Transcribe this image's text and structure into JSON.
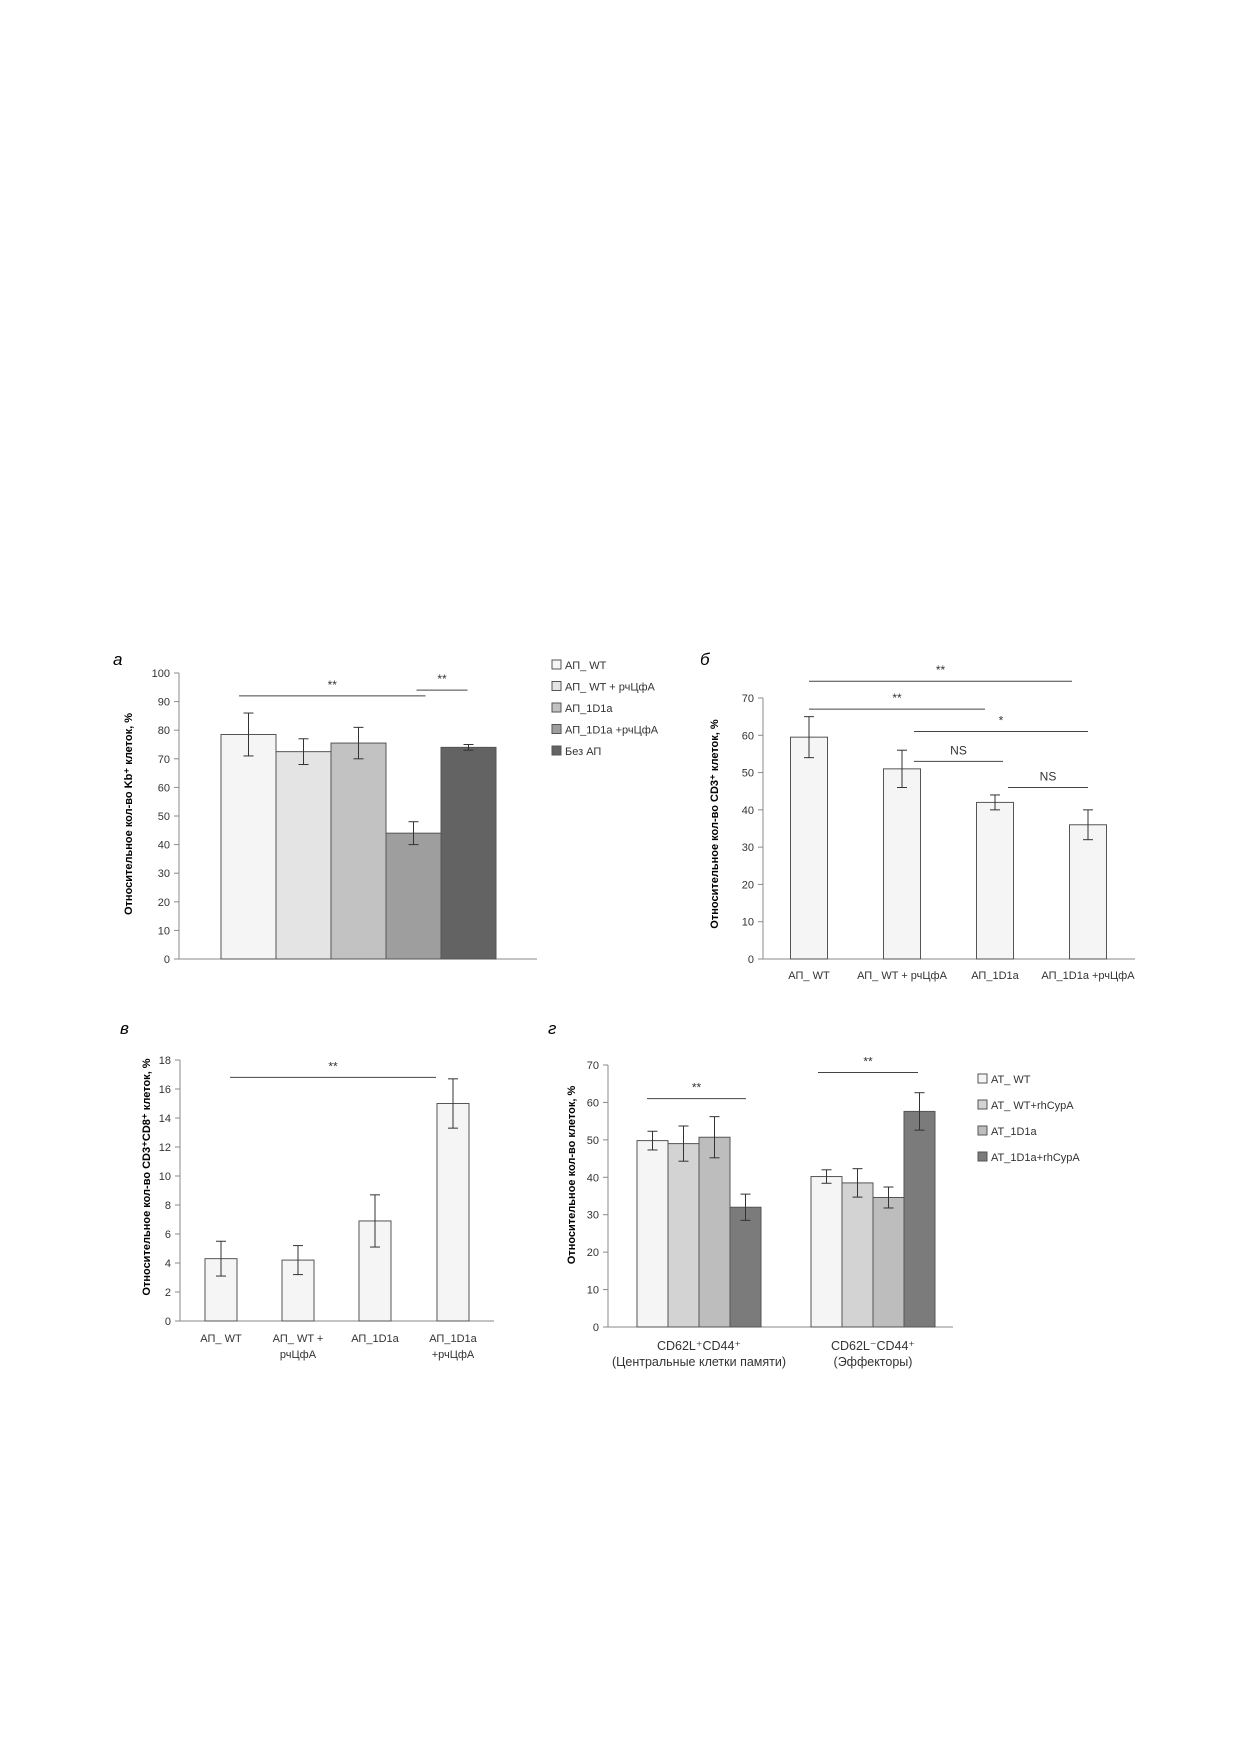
{
  "chart_data": [
    {
      "panel": "а",
      "type": "bar",
      "ylabel": "Относительное кол-во Kb⁺ клеток, %",
      "ylim": [
        0,
        100
      ],
      "yticks": [
        0,
        10,
        20,
        30,
        40,
        50,
        60,
        70,
        80,
        90,
        100
      ],
      "grid": false,
      "legend": "right",
      "series": [
        {
          "name": "АП_ WT",
          "values": [
            78.5
          ],
          "errors": [
            7.5
          ],
          "color": "#f5f5f5"
        },
        {
          "name": "АП_ WT + рчЦфА",
          "values": [
            72.5
          ],
          "errors": [
            4.5
          ],
          "color": "#e4e4e4"
        },
        {
          "name": "АП_1D1a",
          "values": [
            75.5
          ],
          "errors": [
            5.5
          ],
          "color": "#c2c2c2"
        },
        {
          "name": "АП_1D1a +рчЦфА",
          "values": [
            44
          ],
          "errors": [
            4
          ],
          "color": "#9e9e9e"
        },
        {
          "name": "Без АП",
          "values": [
            74
          ],
          "errors": [
            1
          ],
          "color": "#636363"
        }
      ],
      "annotations": [
        {
          "text": "**",
          "from": 0,
          "to": 3,
          "y": 92
        },
        {
          "text": "**",
          "from": 3,
          "to": 4,
          "y": 94
        }
      ]
    },
    {
      "panel": "б",
      "type": "bar",
      "ylabel": "Относительное кол-во CD3⁺ клеток, %",
      "ylim": [
        0,
        70
      ],
      "yticks": [
        0,
        10,
        20,
        30,
        40,
        50,
        60,
        70
      ],
      "grid": false,
      "categories": [
        "АП_ WT",
        "АП_ WT + рчЦфА",
        "АП_1D1a",
        "АП_1D1a +рчЦфА"
      ],
      "values": [
        59.5,
        51,
        42,
        36
      ],
      "errors": [
        5.5,
        5,
        2,
        4
      ],
      "color": "#f5f5f5",
      "annotations": [
        {
          "text": "**",
          "from": 0,
          "to": 3,
          "y": 74.5
        },
        {
          "text": "**",
          "from": 0,
          "to": 2,
          "y": 67
        },
        {
          "text": "*",
          "from": 1,
          "to": 3,
          "y": 61
        },
        {
          "text": "NS",
          "from": 1,
          "to": 2,
          "y": 53
        },
        {
          "text": "NS",
          "from": 2,
          "to": 3,
          "y": 46
        }
      ]
    },
    {
      "panel": "в",
      "type": "bar",
      "ylabel": "Относительное кол-во CD3⁺CD8⁺ клеток, %",
      "ylim": [
        0,
        18
      ],
      "yticks": [
        0,
        2,
        4,
        6,
        8,
        10,
        12,
        14,
        16,
        18
      ],
      "grid": false,
      "categories": [
        [
          "АП_ WT"
        ],
        [
          "АП_ WT +",
          "рчЦфА"
        ],
        [
          "АП_1D1a"
        ],
        [
          "АП_1D1a",
          "+рчЦфА"
        ]
      ],
      "values": [
        4.3,
        4.2,
        6.9,
        15
      ],
      "errors": [
        1.2,
        1,
        1.8,
        1.7
      ],
      "color": "#f5f5f5",
      "annotations": [
        {
          "text": "**",
          "from": 0,
          "to": 3,
          "y": 16.8
        }
      ]
    },
    {
      "panel": "г",
      "type": "bar",
      "ylabel": "Относительное кол-во клеток, %",
      "ylim": [
        0,
        70
      ],
      "yticks": [
        0,
        10,
        20,
        30,
        40,
        50,
        60,
        70
      ],
      "grid": false,
      "legend": "right",
      "categories": [
        [
          "CD62L⁺CD44⁺",
          "(Центральные клетки памяти)"
        ],
        [
          "CD62L⁻CD44⁺",
          "(Эффекторы)"
        ]
      ],
      "series": [
        {
          "name": "AT_ WT",
          "values": [
            49.8,
            40.2
          ],
          "errors": [
            2.5,
            1.8
          ],
          "color": "#f5f5f5"
        },
        {
          "name": "AT_ WT+rhCypA",
          "values": [
            49,
            38.5
          ],
          "errors": [
            4.7,
            3.8
          ],
          "color": "#d3d3d3"
        },
        {
          "name": "AT_1D1a",
          "values": [
            50.7,
            34.6
          ],
          "errors": [
            5.5,
            2.8
          ],
          "color": "#bdbdbd"
        },
        {
          "name": "AT_1D1a+rhCypA",
          "values": [
            32,
            57.6
          ],
          "errors": [
            3.5,
            5
          ],
          "color": "#7b7b7b"
        }
      ],
      "annotations": [
        {
          "text": "**",
          "group": 0,
          "from": 0,
          "to": 3,
          "y": 61
        },
        {
          "text": "**",
          "group": 1,
          "from": 0,
          "to": 3,
          "y": 68
        }
      ]
    }
  ]
}
